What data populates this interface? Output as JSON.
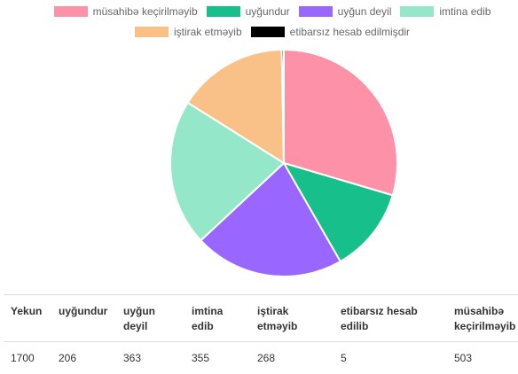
{
  "chart_data": {
    "type": "pie",
    "categories": [
      "müsahibə keçirilməyib",
      "uyğundur",
      "uyğun deyil",
      "imtina edib",
      "iştirak etməyib",
      "etibarsız hesab edilmişdir"
    ],
    "values": [
      503,
      206,
      363,
      355,
      268,
      5
    ],
    "colors": [
      "#fd91a8",
      "#17c08a",
      "#9966ff",
      "#94e8c9",
      "#f9c087",
      "#000000"
    ]
  },
  "table": {
    "header": [
      "Yekun",
      "uyğundur",
      "uyğun deyil",
      "imtina edib",
      "iştirak etməyib",
      "etibarsız hesab edilib",
      "müsahibə keçirilməyib"
    ],
    "rows": [
      [
        "1700",
        "206",
        "363",
        "355",
        "268",
        "5",
        "503"
      ]
    ]
  }
}
